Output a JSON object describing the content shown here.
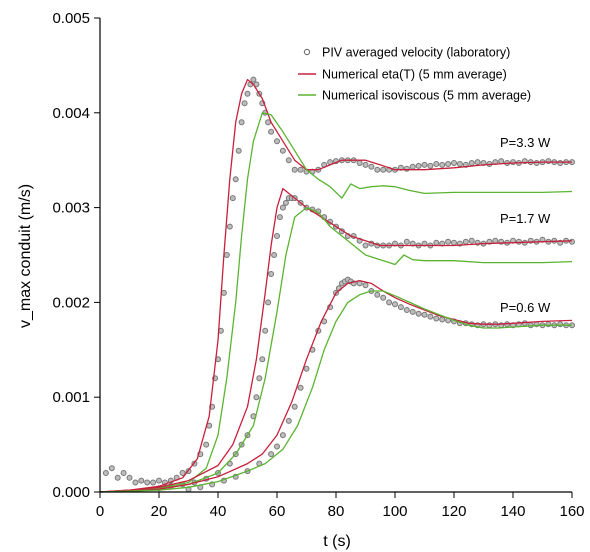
{
  "chart_data": {
    "type": "line",
    "xlabel": "t (s)",
    "ylabel": "v_max conduit (m/s)",
    "xlim": [
      0,
      160
    ],
    "ylim": [
      0,
      0.005
    ],
    "x_ticks": [
      0,
      20,
      40,
      60,
      80,
      100,
      120,
      140,
      160
    ],
    "x_tick_labels": [
      "0",
      "20",
      "40",
      "60",
      "80",
      "100",
      "120",
      "140",
      "160"
    ],
    "y_ticks": [
      0,
      0.001,
      0.002,
      0.003,
      0.004,
      0.005
    ],
    "y_tick_labels": [
      "0.000",
      "0.001",
      "0.002",
      "0.003",
      "0.004",
      "0.005"
    ],
    "grid": false,
    "legend": {
      "position": "top-right",
      "entries": [
        {
          "label": "PIV averaged velocity (laboratory)",
          "marker": "open-circle",
          "color": "#777777"
        },
        {
          "label": "Numerical eta(T) (5 mm average)",
          "marker": "line",
          "color": "#c8203c"
        },
        {
          "label": "Numerical isoviscous (5 mm average)",
          "marker": "line",
          "color": "#5bb431"
        }
      ]
    },
    "annotations": [
      {
        "text": "P=3.3 W",
        "x": 148,
        "y": 0.00372
      },
      {
        "text": "P=1.7 W",
        "x": 148,
        "y": 0.00287
      },
      {
        "text": "P=0.6 W",
        "x": 148,
        "y": 0.00192
      }
    ],
    "series": [
      {
        "kind": "eta",
        "color": "#c8203c",
        "power": "3.3 W",
        "x": [
          0,
          10,
          20,
          28,
          33,
          37,
          40,
          42,
          44,
          46,
          48,
          50,
          52,
          55,
          58,
          62,
          66,
          70,
          74,
          78,
          82,
          86,
          90,
          95,
          100,
          105,
          110,
          120,
          130,
          140,
          150,
          160
        ],
        "y": [
          0,
          2e-05,
          6e-05,
          0.00015,
          0.00035,
          0.0008,
          0.0016,
          0.0025,
          0.0033,
          0.0039,
          0.0042,
          0.00435,
          0.0043,
          0.00415,
          0.0039,
          0.0037,
          0.0035,
          0.0034,
          0.0034,
          0.00345,
          0.0035,
          0.0035,
          0.0035,
          0.00345,
          0.0034,
          0.0034,
          0.0034,
          0.00342,
          0.00345,
          0.00347,
          0.00348,
          0.00348
        ]
      },
      {
        "kind": "iso",
        "color": "#5bb431",
        "power": "3.3 W",
        "x": [
          0,
          10,
          20,
          30,
          36,
          40,
          43,
          46,
          48,
          50,
          52,
          55,
          58,
          62,
          66,
          70,
          74,
          78,
          82,
          85,
          88,
          92,
          96,
          100,
          105,
          110,
          120,
          130,
          140,
          150,
          160
        ],
        "y": [
          0,
          1e-05,
          4e-05,
          0.0001,
          0.00025,
          0.0006,
          0.0012,
          0.002,
          0.0027,
          0.0033,
          0.0037,
          0.004,
          0.00398,
          0.0038,
          0.0036,
          0.0034,
          0.0033,
          0.00322,
          0.0031,
          0.00325,
          0.0032,
          0.00322,
          0.00323,
          0.00322,
          0.00318,
          0.00315,
          0.00316,
          0.00316,
          0.00316,
          0.00316,
          0.00317
        ]
      },
      {
        "kind": "eta",
        "color": "#c8203c",
        "power": "1.7 W",
        "x": [
          0,
          10,
          20,
          30,
          40,
          45,
          50,
          53,
          56,
          58,
          60,
          62,
          64,
          66,
          70,
          75,
          80,
          85,
          90,
          95,
          100,
          105,
          110,
          120,
          130,
          140,
          150,
          160
        ],
        "y": [
          0,
          2e-05,
          5e-05,
          0.00012,
          0.00028,
          0.0005,
          0.0009,
          0.0014,
          0.0021,
          0.0026,
          0.003,
          0.0032,
          0.00315,
          0.0031,
          0.003,
          0.0029,
          0.0028,
          0.0027,
          0.00265,
          0.0026,
          0.0026,
          0.0026,
          0.0026,
          0.0026,
          0.00262,
          0.00263,
          0.00264,
          0.00265
        ]
      },
      {
        "kind": "iso",
        "color": "#5bb431",
        "power": "1.7 W",
        "x": [
          0,
          10,
          20,
          30,
          40,
          46,
          52,
          56,
          60,
          63,
          66,
          70,
          74,
          78,
          82,
          86,
          90,
          95,
          100,
          103,
          106,
          110,
          120,
          130,
          140,
          150,
          160
        ],
        "y": [
          0,
          1e-05,
          3e-05,
          8e-05,
          0.0002,
          0.0004,
          0.0007,
          0.0012,
          0.0019,
          0.0025,
          0.0029,
          0.003,
          0.00295,
          0.0028,
          0.0027,
          0.0026,
          0.0025,
          0.00245,
          0.0024,
          0.0025,
          0.00245,
          0.00244,
          0.00244,
          0.00242,
          0.00242,
          0.00242,
          0.00243
        ]
      },
      {
        "kind": "eta",
        "color": "#c8203c",
        "power": "0.6 W",
        "x": [
          0,
          10,
          20,
          30,
          40,
          50,
          55,
          60,
          65,
          70,
          75,
          80,
          84,
          88,
          92,
          96,
          100,
          105,
          110,
          115,
          120,
          125,
          130,
          135,
          140,
          150,
          160
        ],
        "y": [
          0,
          1e-05,
          3e-05,
          8e-05,
          0.00016,
          0.0003,
          0.0004,
          0.0006,
          0.00095,
          0.0014,
          0.0018,
          0.0021,
          0.0022,
          0.00223,
          0.0022,
          0.00212,
          0.00205,
          0.00198,
          0.00192,
          0.00186,
          0.00182,
          0.00178,
          0.00177,
          0.00177,
          0.00178,
          0.0018,
          0.00181
        ]
      },
      {
        "kind": "iso",
        "color": "#5bb431",
        "power": "0.6 W",
        "x": [
          0,
          10,
          20,
          30,
          40,
          50,
          56,
          62,
          67,
          72,
          76,
          80,
          84,
          88,
          92,
          96,
          100,
          105,
          110,
          115,
          120,
          125,
          130,
          135,
          140,
          150,
          160
        ],
        "y": [
          0,
          1e-05,
          2e-05,
          5e-05,
          0.00011,
          0.00022,
          0.0003,
          0.00045,
          0.0007,
          0.0011,
          0.0015,
          0.0018,
          0.002,
          0.00208,
          0.00212,
          0.00212,
          0.00207,
          0.002,
          0.00193,
          0.00187,
          0.00181,
          0.00176,
          0.00173,
          0.00173,
          0.00174,
          0.00176,
          0.00176
        ]
      },
      {
        "kind": "piv",
        "color": "#777777",
        "power": "3.3 W",
        "x": [
          2,
          4,
          6,
          8,
          10,
          12,
          14,
          16,
          18,
          20,
          22,
          24,
          26,
          28,
          30,
          32,
          34,
          36,
          37,
          38,
          39,
          40,
          41,
          42,
          43,
          44,
          45,
          46,
          47,
          48,
          49,
          50,
          51,
          52,
          53,
          54,
          55,
          56,
          57,
          58,
          60,
          62,
          64,
          66,
          68,
          70,
          72,
          74,
          76,
          78,
          80,
          82,
          84,
          86,
          88,
          90,
          92,
          94,
          96,
          98,
          100,
          102,
          104,
          106,
          108,
          110,
          112,
          114,
          116,
          118,
          120,
          122,
          124,
          126,
          128,
          130,
          132,
          134,
          136,
          138,
          140,
          142,
          144,
          146,
          148,
          150,
          152,
          154,
          156,
          158,
          160
        ],
        "y": [
          0.0002,
          0.00025,
          0.00015,
          0.0002,
          0.00015,
          0.0001,
          0.00012,
          0.0001,
          0.0001,
          0.00012,
          0.0001,
          0.00012,
          0.00015,
          0.0002,
          0.00022,
          0.0003,
          0.0004,
          0.0005,
          0.0007,
          0.0009,
          0.0012,
          0.0014,
          0.0017,
          0.0021,
          0.0025,
          0.0028,
          0.0031,
          0.0033,
          0.0036,
          0.0039,
          0.0041,
          0.0042,
          0.0043,
          0.00435,
          0.0043,
          0.0042,
          0.0041,
          0.004,
          0.0039,
          0.0038,
          0.0037,
          0.0036,
          0.0035,
          0.0034,
          0.0034,
          0.00338,
          0.00338,
          0.0034,
          0.00345,
          0.00348,
          0.00349,
          0.0035,
          0.0035,
          0.0035,
          0.00347,
          0.00345,
          0.00343,
          0.0034,
          0.0034,
          0.0034,
          0.0034,
          0.00342,
          0.00341,
          0.00343,
          0.00344,
          0.00345,
          0.00344,
          0.00346,
          0.00345,
          0.00346,
          0.00347,
          0.00346,
          0.00345,
          0.00347,
          0.00348,
          0.00347,
          0.00346,
          0.00348,
          0.00349,
          0.00347,
          0.00348,
          0.00347,
          0.00349,
          0.00348,
          0.00347,
          0.00348,
          0.00349,
          0.00348,
          0.00347,
          0.00348,
          0.00348
        ]
      },
      {
        "kind": "piv",
        "color": "#777777",
        "power": "1.7 W",
        "x": [
          20,
          24,
          28,
          32,
          36,
          40,
          44,
          46,
          48,
          50,
          52,
          53,
          54,
          55,
          56,
          57,
          58,
          59,
          60,
          61,
          62,
          63,
          64,
          65,
          66,
          68,
          70,
          72,
          74,
          76,
          78,
          80,
          82,
          84,
          86,
          88,
          90,
          92,
          94,
          96,
          98,
          100,
          102,
          104,
          106,
          108,
          110,
          112,
          114,
          116,
          118,
          120,
          122,
          124,
          126,
          128,
          130,
          132,
          134,
          136,
          138,
          140,
          142,
          144,
          146,
          148,
          150,
          152,
          154,
          156,
          158,
          160
        ],
        "y": [
          4e-05,
          6e-05,
          8e-05,
          0.0001,
          0.00014,
          0.0002,
          0.0003,
          0.0004,
          0.0005,
          0.0006,
          0.0008,
          0.001,
          0.0012,
          0.0014,
          0.0017,
          0.002,
          0.0023,
          0.0025,
          0.0027,
          0.0029,
          0.003,
          0.00305,
          0.0031,
          0.0031,
          0.0031,
          0.00305,
          0.003,
          0.00298,
          0.00296,
          0.0029,
          0.00285,
          0.0028,
          0.00275,
          0.0027,
          0.0027,
          0.00265,
          0.0026,
          0.00262,
          0.0026,
          0.0026,
          0.0026,
          0.00262,
          0.0026,
          0.00264,
          0.00262,
          0.0026,
          0.00262,
          0.0026,
          0.00263,
          0.00262,
          0.00264,
          0.00263,
          0.00262,
          0.00264,
          0.00265,
          0.00263,
          0.00262,
          0.00264,
          0.00265,
          0.00264,
          0.00263,
          0.00265,
          0.00264,
          0.00263,
          0.00265,
          0.00264,
          0.00266,
          0.00264,
          0.00265,
          0.00263,
          0.00265,
          0.00264
        ]
      },
      {
        "kind": "piv",
        "color": "#777777",
        "power": "0.6 W",
        "x": [
          30,
          34,
          38,
          42,
          46,
          50,
          54,
          58,
          60,
          62,
          64,
          66,
          68,
          70,
          72,
          74,
          76,
          78,
          80,
          81,
          82,
          83,
          84,
          85,
          86,
          88,
          90,
          92,
          94,
          96,
          98,
          100,
          102,
          104,
          106,
          108,
          110,
          112,
          114,
          116,
          118,
          120,
          122,
          124,
          126,
          128,
          130,
          132,
          134,
          136,
          138,
          140,
          142,
          144,
          146,
          148,
          150,
          152,
          154,
          156,
          158,
          160
        ],
        "y": [
          3e-05,
          5e-05,
          8e-05,
          0.00012,
          0.00016,
          0.00022,
          0.0003,
          0.0004,
          0.00048,
          0.0006,
          0.00075,
          0.0009,
          0.0011,
          0.0013,
          0.0015,
          0.0017,
          0.0018,
          0.00195,
          0.0021,
          0.00215,
          0.0022,
          0.00222,
          0.00224,
          0.00222,
          0.0022,
          0.0022,
          0.00218,
          0.00212,
          0.00208,
          0.00205,
          0.002,
          0.00198,
          0.00195,
          0.00192,
          0.0019,
          0.00188,
          0.00187,
          0.00185,
          0.00183,
          0.00182,
          0.00181,
          0.0018,
          0.00178,
          0.00178,
          0.00177,
          0.00176,
          0.00177,
          0.00176,
          0.00177,
          0.00176,
          0.00177,
          0.00176,
          0.00177,
          0.00178,
          0.00176,
          0.00177,
          0.00176,
          0.00177,
          0.00176,
          0.00177,
          0.00176,
          0.00176
        ]
      }
    ]
  }
}
